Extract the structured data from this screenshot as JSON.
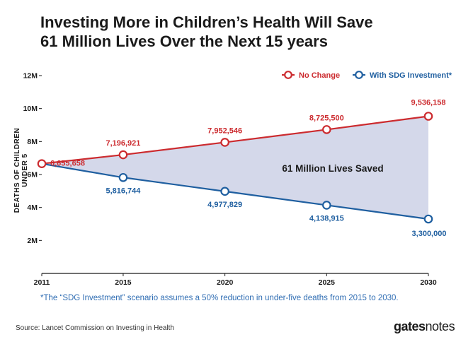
{
  "title": {
    "line1": "Investing More in Children’s Health Will Save",
    "line2": "61 Million Lives Over the Next 15 years"
  },
  "colors": {
    "red": "#cc2b2f",
    "blue": "#1f5fa0",
    "fill": "#d4d8ea",
    "text": "#1a1a1a"
  },
  "chart_data": {
    "type": "line",
    "x": [
      2011,
      2015,
      2020,
      2025,
      2030
    ],
    "ylabel": "DEATHS OF CHILDREN UNDER 5",
    "ylim": [
      0,
      12000000
    ],
    "yticks": [
      2000000,
      4000000,
      6000000,
      8000000,
      10000000,
      12000000
    ],
    "ytick_labels": [
      "2M",
      "4M",
      "6M",
      "8M",
      "10M",
      "12M"
    ],
    "legend_position": "top-right",
    "series": [
      {
        "name": "No Change",
        "color": "#cc2b2f",
        "values": [
          6655658,
          7196921,
          7952546,
          8725500,
          9536158
        ],
        "labels": [
          "6,655,658",
          "7,196,921",
          "7,952,546",
          "8,725,500",
          "9,536,158"
        ]
      },
      {
        "name": "With SDG Investment*",
        "color": "#1f5fa0",
        "values": [
          6655658,
          5816744,
          4977829,
          4138915,
          3300000
        ],
        "labels": [
          "",
          "5,816,744",
          "4,977,829",
          "4,138,915",
          "3,300,000"
        ]
      }
    ],
    "annotation": "61 Million Lives Saved"
  },
  "footnote": "*The “SDG Investment” scenario assumes a 50% reduction in under-five deaths from 2015 to 2030.",
  "source": "Source: Lancet Commission on Investing in Health",
  "logo": {
    "bold": "gates",
    "regular": "notes"
  }
}
